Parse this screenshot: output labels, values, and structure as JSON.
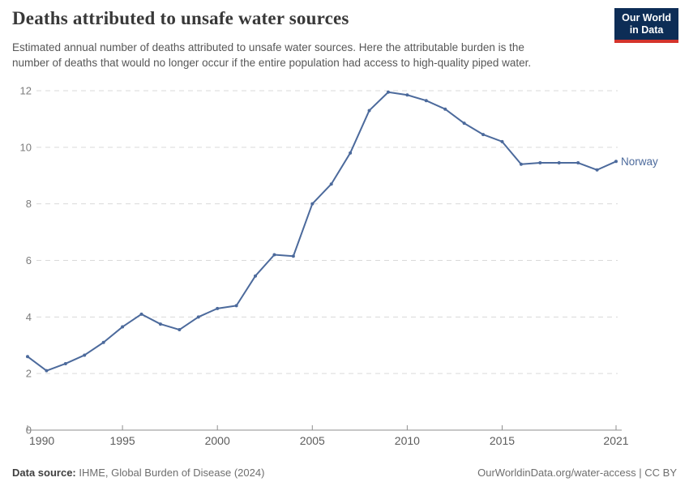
{
  "header": {
    "title": "Deaths attributed to unsafe water sources",
    "subtitle_lines": [
      "Estimated annual number of deaths attributed to unsafe water sources. Here the attributable burden is the",
      "number of deaths that would no longer occur if the entire population had access to high-quality piped water."
    ],
    "logo": {
      "line1": "Our World",
      "line2": "in Data",
      "bg_color": "#0d2d56",
      "accent_color": "#d4342c"
    }
  },
  "chart_data": {
    "type": "line",
    "title": "Deaths attributed to unsafe water sources",
    "x": [
      1990,
      1991,
      1992,
      1993,
      1994,
      1995,
      1996,
      1997,
      1998,
      1999,
      2000,
      2001,
      2002,
      2003,
      2004,
      2005,
      2006,
      2007,
      2008,
      2009,
      2010,
      2011,
      2012,
      2013,
      2014,
      2015,
      2016,
      2017,
      2018,
      2019,
      2020,
      2021
    ],
    "series": [
      {
        "name": "Norway",
        "color": "#4c6a9c",
        "values": [
          2.6,
          2.1,
          2.35,
          2.65,
          3.1,
          3.65,
          4.1,
          3.75,
          3.55,
          4.0,
          4.3,
          4.4,
          5.45,
          6.2,
          6.15,
          8.0,
          8.7,
          9.8,
          11.3,
          11.95,
          11.85,
          11.65,
          11.35,
          10.85,
          10.45,
          10.2,
          9.4,
          9.45,
          9.45,
          9.45,
          9.2,
          9.5
        ]
      }
    ],
    "ylim": [
      0,
      12
    ],
    "yticks": [
      0,
      2,
      4,
      6,
      8,
      10,
      12
    ],
    "xticks": [
      1990,
      1995,
      2000,
      2005,
      2010,
      2015,
      2021
    ],
    "xlabel": "",
    "ylabel": "",
    "grid": "horizontal-dashed",
    "legend": "end-of-line-label",
    "grid_color": "#dadada",
    "axis_color": "#8f8f8f",
    "y_tick_label_color": "#7d7d7d",
    "x_tick_label_color": "#5c5c5c"
  },
  "footer": {
    "source_label": "Data source:",
    "source_text": "IHME, Global Burden of Disease (2024)",
    "link_text": "OurWorldinData.org/water-access | CC BY"
  }
}
